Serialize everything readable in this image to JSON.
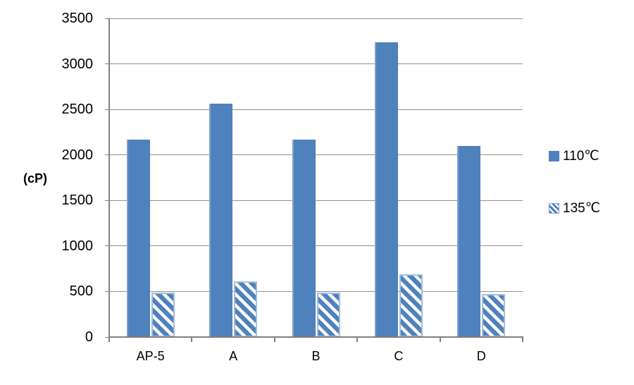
{
  "chart_data": {
    "type": "bar",
    "title": "",
    "xlabel": "",
    "ylabel": "(cP)",
    "categories": [
      "AP-5",
      "A",
      "B",
      "C",
      "D"
    ],
    "series": [
      {
        "name": "110℃",
        "style": "solid",
        "values": [
          2170,
          2560,
          2170,
          3240,
          2100
        ]
      },
      {
        "name": "135℃",
        "style": "hatched",
        "values": [
          490,
          610,
          490,
          690,
          470
        ]
      }
    ],
    "ylim": [
      0,
      3500
    ],
    "yticks": [
      0,
      500,
      1000,
      1500,
      2000,
      2500,
      3000,
      3500
    ],
    "grid": true,
    "legend_position": "right",
    "colors": {
      "bar_fill": "#4f81bd",
      "hatch_stripe": "#4f81bd",
      "hatch_background": "#ffffff",
      "hatch_border": "#a3bedd",
      "gridline": "#919191",
      "axis": "#808080",
      "text": "#000000"
    }
  }
}
